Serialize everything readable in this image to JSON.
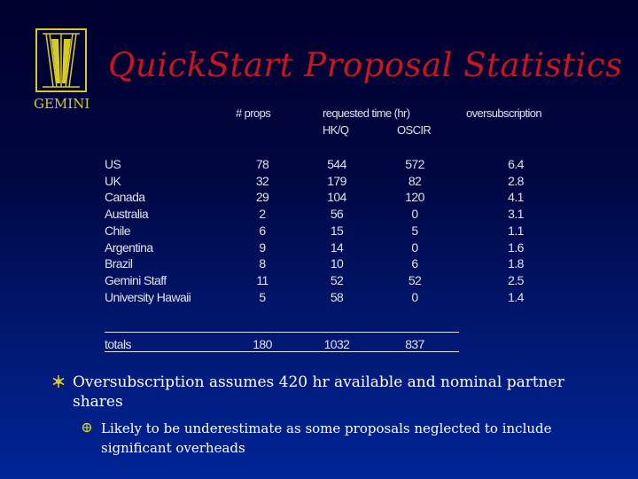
{
  "slide": {
    "title": "QuickStart Proposal Statistics",
    "logo_text": "GEMINI"
  },
  "table": {
    "headers": {
      "props": "# props",
      "requested": "requested time (hr)",
      "hkq": "HK/Q",
      "oscir": "OSCIR",
      "oversub": "oversubscription"
    },
    "rows": [
      {
        "name": "US",
        "props": "78",
        "hkq": "544",
        "oscir": "572",
        "oversub": "6.4"
      },
      {
        "name": "UK",
        "props": "32",
        "hkq": "179",
        "oscir": "82",
        "oversub": "2.8"
      },
      {
        "name": "Canada",
        "props": "29",
        "hkq": "104",
        "oscir": "120",
        "oversub": "4.1"
      },
      {
        "name": "Australia",
        "props": "2",
        "hkq": "56",
        "oscir": "0",
        "oversub": "3.1"
      },
      {
        "name": "Chile",
        "props": "6",
        "hkq": "15",
        "oscir": "5",
        "oversub": "1.1"
      },
      {
        "name": "Argentina",
        "props": "9",
        "hkq": "14",
        "oscir": "0",
        "oversub": "1.6"
      },
      {
        "name": "Brazil",
        "props": "8",
        "hkq": "10",
        "oscir": "6",
        "oversub": "1.8"
      },
      {
        "name": "Gemini Staff",
        "props": "11",
        "hkq": "52",
        "oscir": "52",
        "oversub": "2.5"
      },
      {
        "name": "University Hawaii",
        "props": "5",
        "hkq": "58",
        "oscir": "0",
        "oversub": "1.4"
      }
    ],
    "totals": {
      "name": "totals",
      "props": "180",
      "hkq": "1032",
      "oscir": "837"
    }
  },
  "bullets": [
    {
      "text": "Oversubscription assumes 420 hr available and nominal partner shares",
      "sub": [
        "Likely to be underestimate as some proposals neglected to include significant overheads"
      ]
    }
  ],
  "colors": {
    "title": "#c8161c",
    "logo": "#d8c92a",
    "bullet_marker": "#d8c92a"
  }
}
